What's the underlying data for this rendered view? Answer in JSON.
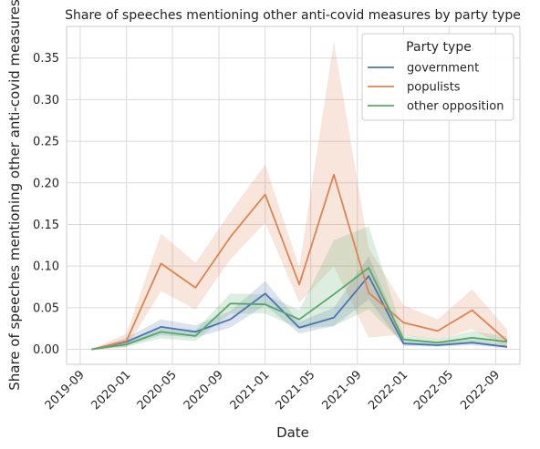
{
  "chart_data": {
    "type": "line",
    "title": "Share of speeches mentioning other anti-covid measures by party type",
    "xlabel": "Date",
    "ylabel": "Share of speeches mentioning other anti-covid measures",
    "x_tick_labels": [
      "2019-09",
      "2020-01",
      "2020-05",
      "2020-09",
      "2021-01",
      "2021-05",
      "2021-09",
      "2022-01",
      "2022-05",
      "2022-09"
    ],
    "y_ticks": [
      0.0,
      0.05,
      0.1,
      0.15,
      0.2,
      0.25,
      0.3,
      0.35
    ],
    "y_tick_labels": [
      "0.00",
      "0.05",
      "0.10",
      "0.15",
      "0.20",
      "0.25",
      "0.30",
      "0.35"
    ],
    "ylim": [
      -0.018,
      0.388
    ],
    "grid": true,
    "legend": {
      "title": "Party type",
      "placement": "top-right"
    },
    "x": [
      "2019-10-01",
      "2020-01-01",
      "2020-04-01",
      "2020-07-01",
      "2020-10-01",
      "2021-01-01",
      "2021-04-01",
      "2021-07-01",
      "2021-10-01",
      "2022-01-01",
      "2022-04-01",
      "2022-07-01",
      "2022-10-01"
    ],
    "series": [
      {
        "name": "government",
        "color": "#4c72b0",
        "values": [
          0.0,
          0.009,
          0.027,
          0.021,
          0.036,
          0.067,
          0.026,
          0.038,
          0.088,
          0.007,
          0.005,
          0.008,
          0.003
        ],
        "ci_low": [
          0.0,
          0.004,
          0.017,
          0.014,
          0.026,
          0.053,
          0.019,
          0.028,
          0.06,
          0.004,
          0.003,
          0.005,
          0.001
        ],
        "ci_high": [
          0.0,
          0.014,
          0.036,
          0.029,
          0.046,
          0.082,
          0.033,
          0.05,
          0.112,
          0.011,
          0.008,
          0.012,
          0.006
        ]
      },
      {
        "name": "populists",
        "color": "#dd8452",
        "values": [
          0.0,
          0.01,
          0.103,
          0.074,
          0.135,
          0.186,
          0.078,
          0.21,
          0.068,
          0.032,
          0.022,
          0.047,
          0.01
        ],
        "ci_low": [
          0.0,
          0.002,
          0.07,
          0.048,
          0.108,
          0.152,
          0.056,
          0.1,
          0.014,
          0.018,
          0.011,
          0.024,
          0.002
        ],
        "ci_high": [
          0.0,
          0.019,
          0.139,
          0.104,
          0.165,
          0.222,
          0.099,
          0.37,
          0.122,
          0.053,
          0.036,
          0.072,
          0.024
        ]
      },
      {
        "name": "other opposition",
        "color": "#55a868",
        "values": [
          0.0,
          0.006,
          0.021,
          0.016,
          0.055,
          0.054,
          0.036,
          0.066,
          0.098,
          0.012,
          0.008,
          0.014,
          0.009
        ],
        "ci_low": [
          0.0,
          0.003,
          0.013,
          0.01,
          0.043,
          0.043,
          0.025,
          0.028,
          0.048,
          0.007,
          0.004,
          0.009,
          0.005
        ],
        "ci_high": [
          0.0,
          0.01,
          0.027,
          0.023,
          0.067,
          0.066,
          0.047,
          0.131,
          0.148,
          0.018,
          0.012,
          0.022,
          0.015
        ]
      }
    ]
  }
}
